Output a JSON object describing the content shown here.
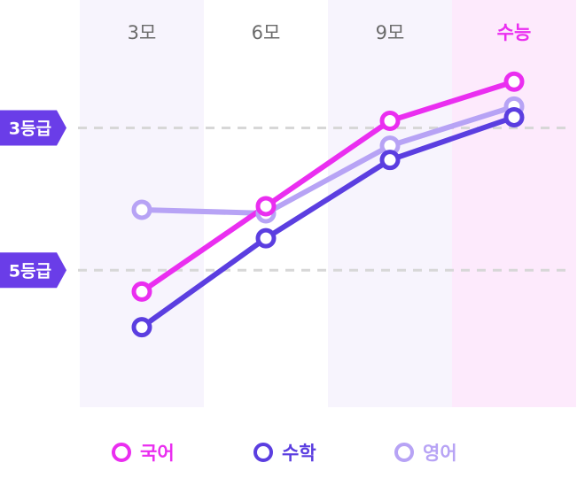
{
  "chart_data": {
    "type": "line",
    "categories": [
      "3모",
      "6모",
      "9모",
      "수능"
    ],
    "highlight_category": "수능",
    "y_reference_lines": [
      {
        "label": "3등급",
        "value": 3
      },
      {
        "label": "5등급",
        "value": 5
      }
    ],
    "y_axis": {
      "inverted": true,
      "ylim": [
        1.7,
        6.8
      ]
    },
    "series": [
      {
        "name": "국어",
        "color": "#ea2ef0",
        "values": [
          5.3,
          4.1,
          2.9,
          2.35
        ]
      },
      {
        "name": "수학",
        "color": "#5b3ee0",
        "values": [
          5.8,
          4.55,
          3.45,
          2.85
        ]
      },
      {
        "name": "영어",
        "color": "#b7a3f5",
        "values": [
          4.15,
          4.2,
          3.25,
          2.7
        ]
      }
    ],
    "colors": {
      "column_bg": "#f7f4fd",
      "highlight_bg": "#fdeafc",
      "tick_label": "#6b6b6b",
      "highlight_label": "#ea2ef0",
      "badge_bg": "#6a3de8",
      "grid_dash": "#d7d7d7"
    }
  }
}
